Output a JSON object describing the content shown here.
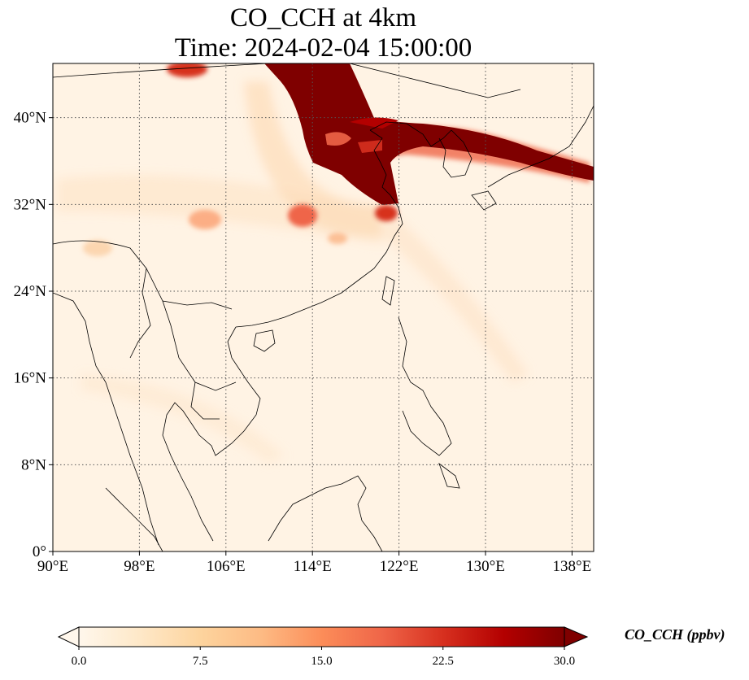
{
  "title": {
    "line1": "CO_CCH at 4km",
    "line2": "Time: 2024-02-04 15:00:00"
  },
  "map": {
    "lon_range": [
      90,
      140
    ],
    "lat_range": [
      0,
      45
    ],
    "lon_ticks": [
      {
        "value": 90,
        "label": "90°E"
      },
      {
        "value": 98,
        "label": "98°E"
      },
      {
        "value": 106,
        "label": "106°E"
      },
      {
        "value": 114,
        "label": "114°E"
      },
      {
        "value": 122,
        "label": "122°E"
      },
      {
        "value": 130,
        "label": "130°E"
      },
      {
        "value": 138,
        "label": "138°E"
      }
    ],
    "lat_ticks": [
      {
        "value": 0,
        "label": "0°"
      },
      {
        "value": 8,
        "label": "8°N"
      },
      {
        "value": 16,
        "label": "16°N"
      },
      {
        "value": 24,
        "label": "24°N"
      },
      {
        "value": 32,
        "label": "32°N"
      },
      {
        "value": 40,
        "label": "40°N"
      }
    ],
    "gridlines": true,
    "gridline_style": "dotted",
    "colormap": "OrRd"
  },
  "colorbar": {
    "label": "CO_CCH (ppbv)",
    "min": 0.0,
    "max": 30.0,
    "extend": "both",
    "ticks": [
      {
        "value": 0.0,
        "label": "0.0"
      },
      {
        "value": 7.5,
        "label": "7.5"
      },
      {
        "value": 15.0,
        "label": "15.0"
      },
      {
        "value": 22.5,
        "label": "22.5"
      },
      {
        "value": 30.0,
        "label": "30.0"
      }
    ],
    "colors": [
      "#fff7ec",
      "#fee8c8",
      "#fdd49e",
      "#fdbb84",
      "#fc8d59",
      "#ef6548",
      "#d7301f",
      "#b30000",
      "#7f0000"
    ]
  }
}
